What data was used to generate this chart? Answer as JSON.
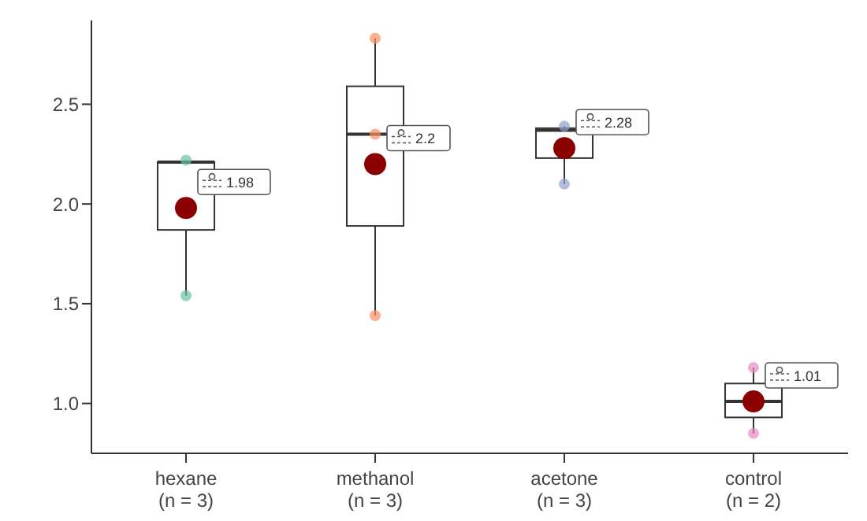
{
  "chart_data": {
    "type": "box",
    "categories": [
      "hexane\n(n = 3)",
      "methanol\n(n = 3)",
      "acetone\n(n = 3)",
      "control\n(n = 2)"
    ],
    "ylim": [
      0.75,
      2.92
    ],
    "yticks": [
      {
        "value": 1,
        "label": "1.0"
      },
      1.5,
      {
        "value": 2,
        "label": "2.0"
      },
      2.5
    ],
    "series": [
      {
        "color": "#333333",
        "boxes": [
          {
            "low": 1.54,
            "q1": 1.87,
            "median": 2.21,
            "q3": 2.21,
            "high": 2.22
          },
          {
            "low": 1.44,
            "q1": 1.89,
            "median": 2.35,
            "q3": 2.59,
            "high": 2.83
          },
          {
            "low": 2.1,
            "q1": 2.23,
            "median": 2.37,
            "q3": 2.38,
            "high": 2.39
          },
          {
            "low": 0.85,
            "q1": 0.93,
            "median": 1.01,
            "q3": 1.1,
            "high": 1.18
          }
        ]
      },
      {
        "type": "scatter",
        "x": [
          "hexane\n(n = 3)",
          "hexane\n(n = 3)",
          "methanol\n(n = 3)",
          "methanol\n(n = 3)",
          "methanol\n(n = 3)",
          "acetone\n(n = 3)",
          "acetone\n(n = 3)",
          "control\n(n = 2)",
          "control\n(n = 2)"
        ],
        "values": [
          2.22,
          1.54,
          2.83,
          2.35,
          1.44,
          2.39,
          2.1,
          1.18,
          0.85
        ],
        "colors": [
          "#66c2a5",
          "#66c2a5",
          "#fc8d62",
          "#fc8d62",
          "#fc8d62",
          "#8da0cb",
          "#8da0cb",
          "#e78ac3",
          "#e78ac3"
        ]
      },
      {
        "type": "scatter",
        "x": [
          "hexane\n(n = 3)",
          "methanol\n(n = 3)",
          "acetone\n(n = 3)",
          "control\n(n = 2)"
        ],
        "values": [
          1.98,
          2.2,
          2.28,
          1.01
        ],
        "color": "#8b0000",
        "value_labels": [
          "1.98",
          "2.2",
          "2.28",
          "1.01"
        ]
      }
    ]
  }
}
